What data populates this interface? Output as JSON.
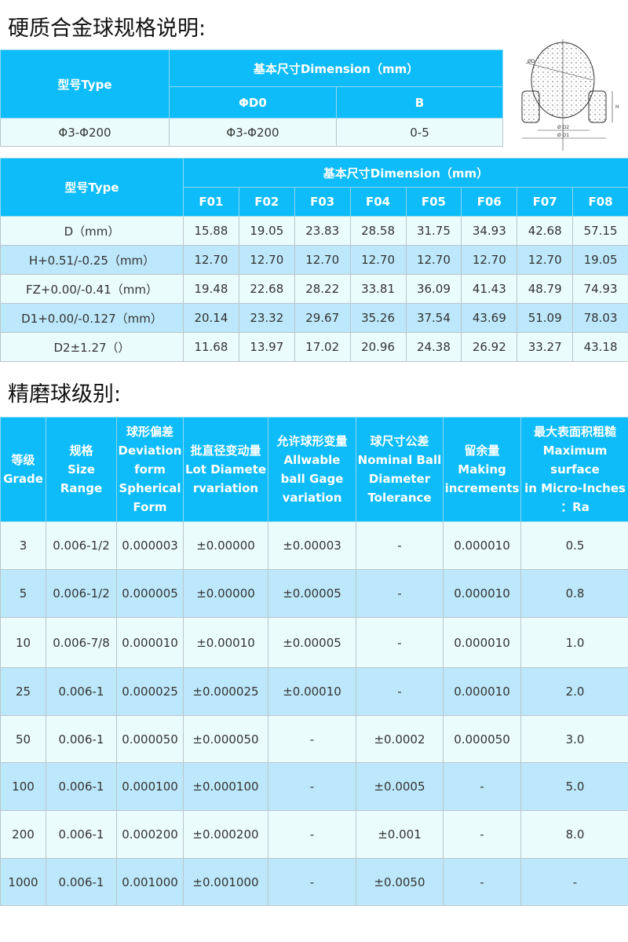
{
  "section1": {
    "title": "硬质合金球规格说明:",
    "header": {
      "type": "型号Type",
      "dimension": "基本尺寸Dimension（mm）",
      "d0": "ΦD0",
      "b": "B"
    },
    "row": [
      "Φ3-Φ200",
      "Φ3-Φ200",
      "0-5"
    ],
    "diagram_labels": [
      "ØD",
      "Ø D2",
      "Ø D1",
      "H"
    ]
  },
  "section2": {
    "header": {
      "type": "型号Type",
      "dimension": "基本尺寸Dimension（mm）",
      "cols": [
        "F01",
        "F02",
        "F03",
        "F04",
        "F05",
        "F06",
        "F07",
        "F08"
      ]
    },
    "rows": [
      {
        "label": "D（mm）",
        "values": [
          "15.88",
          "19.05",
          "23.83",
          "28.58",
          "31.75",
          "34.93",
          "42.68",
          "57.15"
        ]
      },
      {
        "label": "H+0.51/-0.25（mm）",
        "values": [
          "12.70",
          "12.70",
          "12.70",
          "12.70",
          "12.70",
          "12.70",
          "12.70",
          "19.05"
        ]
      },
      {
        "label": "FZ+0.00/-0.41（mm）",
        "values": [
          "19.48",
          "22.68",
          "28.22",
          "33.81",
          "36.09",
          "41.43",
          "48.79",
          "74.93"
        ]
      },
      {
        "label": "D1+0.00/-0.127（mm）",
        "values": [
          "20.14",
          "23.32",
          "29.67",
          "35.26",
          "37.54",
          "43.69",
          "51.09",
          "78.03"
        ]
      },
      {
        "label": "D2±1.27（）",
        "values": [
          "11.68",
          "13.97",
          "17.02",
          "20.96",
          "24.38",
          "26.92",
          "33.27",
          "43.18"
        ]
      }
    ]
  },
  "section3": {
    "title": "精磨球级别:",
    "headers": [
      [
        "等级",
        "Grade"
      ],
      [
        "规格",
        "Size",
        "Range"
      ],
      [
        "球形偏差",
        "Deviation",
        "form",
        "Spherical",
        "Form"
      ],
      [
        "批直径变动量",
        "Lot Diamete",
        "rvariation"
      ],
      [
        "允许球形变量",
        "Allwable",
        "ball Gage",
        "variation"
      ],
      [
        "球尺寸公差",
        "Nominal Ball",
        "Diameter",
        "Tolerance"
      ],
      [
        "留余量",
        "Making",
        "increments"
      ],
      [
        "最大表面积粗糙",
        "Maximum",
        "surface",
        "in Micro-Inches",
        "：Ra"
      ]
    ],
    "rows": [
      [
        "3",
        "0.006-1/2",
        "0.000003",
        "±0.00000",
        "±0.00003",
        "-",
        "0.000010",
        "0.5"
      ],
      [
        "5",
        "0.006-1/2",
        "0.000005",
        "±0.00000",
        "±0.00005",
        "-",
        "0.000010",
        "0.8"
      ],
      [
        "10",
        "0.006-7/8",
        "0.000010",
        "±0.00010",
        "±0.00005",
        "-",
        "0.000010",
        "1.0"
      ],
      [
        "25",
        "0.006-1",
        "0.000025",
        "±0.000025",
        "±0.00010",
        "-",
        "0.000010",
        "2.0"
      ],
      [
        "50",
        "0.006-1",
        "0.000050",
        "±0.000050",
        "-",
        "±0.0002",
        "0.000050",
        "3.0"
      ],
      [
        "100",
        "0.006-1",
        "0.000100",
        "±0.000100",
        "-",
        "±0.0005",
        "-",
        "5.0"
      ],
      [
        "200",
        "0.006-1",
        "0.000200",
        "±0.000200",
        "-",
        "±0.001",
        "-",
        "8.0"
      ],
      [
        "1000",
        "0.006-1",
        "0.001000",
        "±0.001000",
        "-",
        "±0.0050",
        "-",
        "-"
      ]
    ]
  },
  "colors": {
    "header": "#0ebcf9",
    "row_light": "#ebfcfc",
    "row_blue": "#bde8fb"
  }
}
